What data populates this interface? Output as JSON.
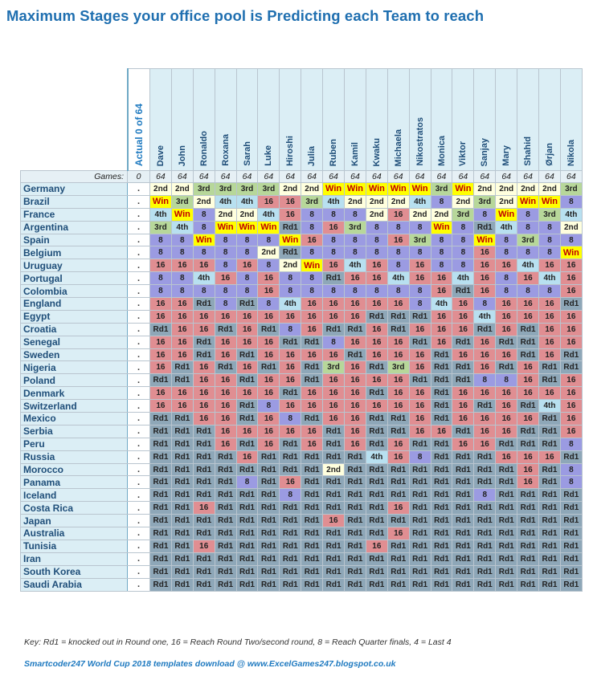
{
  "title": "Maximum Stages your office pool is Predicting each Team to reach",
  "actual_header": "Actual 0 of 64",
  "games_label": "Games:",
  "games_actual": "0",
  "players": [
    "Dave",
    "John",
    "Ronaldo",
    "Roxana",
    "Sarah",
    "Luke",
    "Hiroshi",
    "Julia",
    "Ruben",
    "Kamil",
    "Kwaku",
    "Michaela",
    "Nikostratos",
    "Monica",
    "Viktor",
    "Sanjay",
    "Mary",
    "Shahid",
    "Ørjan",
    "Nikola"
  ],
  "games_per_player": [
    "64",
    "64",
    "64",
    "64",
    "64",
    "64",
    "64",
    "64",
    "64",
    "64",
    "64",
    "64",
    "64",
    "64",
    "64",
    "64",
    "64",
    "64",
    "64",
    "64"
  ],
  "rows": [
    {
      "team": "Germany",
      "actual": ".",
      "picks": [
        "2nd",
        "2nd",
        "3rd",
        "3rd",
        "3rd",
        "3rd",
        "2nd",
        "2nd",
        "Win",
        "Win",
        "Win",
        "Win",
        "Win",
        "3rd",
        "Win",
        "2nd",
        "2nd",
        "2nd",
        "2nd",
        "3rd"
      ]
    },
    {
      "team": "Brazil",
      "actual": ".",
      "picks": [
        "Win",
        "3rd",
        "2nd",
        "4th",
        "4th",
        "16",
        "16",
        "3rd",
        "4th",
        "2nd",
        "2nd",
        "2nd",
        "4th",
        "8",
        "2nd",
        "3rd",
        "2nd",
        "Win",
        "Win",
        "8"
      ]
    },
    {
      "team": "France",
      "actual": ".",
      "picks": [
        "4th",
        "Win",
        "8",
        "2nd",
        "2nd",
        "4th",
        "16",
        "8",
        "8",
        "8",
        "2nd",
        "16",
        "2nd",
        "2nd",
        "3rd",
        "8",
        "Win",
        "8",
        "3rd",
        "4th"
      ]
    },
    {
      "team": "Argentina",
      "actual": ".",
      "picks": [
        "3rd",
        "4th",
        "8",
        "Win",
        "Win",
        "Win",
        "Rd1",
        "8",
        "16",
        "3rd",
        "8",
        "8",
        "8",
        "Win",
        "8",
        "Rd1",
        "4th",
        "8",
        "8",
        "2nd"
      ]
    },
    {
      "team": "Spain",
      "actual": ".",
      "picks": [
        "8",
        "8",
        "Win",
        "8",
        "8",
        "8",
        "Win",
        "16",
        "8",
        "8",
        "8",
        "16",
        "3rd",
        "8",
        "8",
        "Win",
        "8",
        "3rd",
        "8",
        "8"
      ]
    },
    {
      "team": "Belgium",
      "actual": ".",
      "picks": [
        "8",
        "8",
        "8",
        "8",
        "8",
        "2nd",
        "Rd1",
        "8",
        "8",
        "8",
        "8",
        "8",
        "8",
        "8",
        "8",
        "16",
        "8",
        "8",
        "8",
        "Win"
      ]
    },
    {
      "team": "Uruguay",
      "actual": ".",
      "picks": [
        "16",
        "16",
        "16",
        "8",
        "16",
        "8",
        "2nd",
        "Win",
        "16",
        "4th",
        "16",
        "8",
        "16",
        "8",
        "8",
        "16",
        "16",
        "4th",
        "16",
        "16"
      ]
    },
    {
      "team": "Portugal",
      "actual": ".",
      "picks": [
        "8",
        "8",
        "4th",
        "16",
        "8",
        "16",
        "8",
        "8",
        "Rd1",
        "16",
        "16",
        "4th",
        "16",
        "16",
        "4th",
        "16",
        "8",
        "16",
        "4th",
        "16"
      ]
    },
    {
      "team": "Colombia",
      "actual": ".",
      "picks": [
        "8",
        "8",
        "8",
        "8",
        "8",
        "16",
        "8",
        "8",
        "8",
        "8",
        "8",
        "8",
        "8",
        "16",
        "Rd1",
        "16",
        "8",
        "8",
        "8",
        "16"
      ]
    },
    {
      "team": "England",
      "actual": ".",
      "picks": [
        "16",
        "16",
        "Rd1",
        "8",
        "Rd1",
        "8",
        "4th",
        "16",
        "16",
        "16",
        "16",
        "16",
        "8",
        "4th",
        "16",
        "8",
        "16",
        "16",
        "16",
        "Rd1"
      ]
    },
    {
      "team": "Egypt",
      "actual": ".",
      "picks": [
        "16",
        "16",
        "16",
        "16",
        "16",
        "16",
        "16",
        "16",
        "16",
        "16",
        "Rd1",
        "Rd1",
        "Rd1",
        "16",
        "16",
        "4th",
        "16",
        "16",
        "16",
        "16"
      ]
    },
    {
      "team": "Croatia",
      "actual": ".",
      "picks": [
        "Rd1",
        "16",
        "16",
        "Rd1",
        "16",
        "Rd1",
        "8",
        "16",
        "Rd1",
        "Rd1",
        "16",
        "Rd1",
        "16",
        "16",
        "16",
        "Rd1",
        "16",
        "Rd1",
        "16",
        "16"
      ]
    },
    {
      "team": "Senegal",
      "actual": ".",
      "picks": [
        "16",
        "16",
        "Rd1",
        "16",
        "16",
        "16",
        "Rd1",
        "Rd1",
        "8",
        "16",
        "16",
        "16",
        "Rd1",
        "16",
        "Rd1",
        "16",
        "Rd1",
        "Rd1",
        "16",
        "16"
      ]
    },
    {
      "team": "Sweden",
      "actual": ".",
      "picks": [
        "16",
        "16",
        "Rd1",
        "16",
        "Rd1",
        "16",
        "16",
        "16",
        "16",
        "Rd1",
        "16",
        "16",
        "16",
        "Rd1",
        "16",
        "16",
        "16",
        "Rd1",
        "16",
        "Rd1"
      ]
    },
    {
      "team": "Nigeria",
      "actual": ".",
      "picks": [
        "16",
        "Rd1",
        "16",
        "Rd1",
        "16",
        "Rd1",
        "16",
        "Rd1",
        "3rd",
        "16",
        "Rd1",
        "3rd",
        "16",
        "Rd1",
        "Rd1",
        "16",
        "Rd1",
        "16",
        "Rd1",
        "Rd1"
      ]
    },
    {
      "team": "Poland",
      "actual": ".",
      "picks": [
        "Rd1",
        "Rd1",
        "16",
        "16",
        "Rd1",
        "16",
        "16",
        "Rd1",
        "16",
        "16",
        "16",
        "16",
        "Rd1",
        "Rd1",
        "Rd1",
        "8",
        "8",
        "16",
        "Rd1",
        "16"
      ]
    },
    {
      "team": "Denmark",
      "actual": ".",
      "picks": [
        "16",
        "16",
        "16",
        "16",
        "16",
        "16",
        "Rd1",
        "16",
        "16",
        "16",
        "Rd1",
        "16",
        "16",
        "Rd1",
        "16",
        "16",
        "16",
        "16",
        "16",
        "16"
      ]
    },
    {
      "team": "Switzerland",
      "actual": ".",
      "picks": [
        "16",
        "16",
        "16",
        "16",
        "Rd1",
        "8",
        "16",
        "16",
        "16",
        "16",
        "16",
        "16",
        "16",
        "Rd1",
        "16",
        "Rd1",
        "16",
        "Rd1",
        "4th",
        "16"
      ]
    },
    {
      "team": "Mexico",
      "actual": ".",
      "picks": [
        "Rd1",
        "Rd1",
        "16",
        "16",
        "Rd1",
        "16",
        "8",
        "Rd1",
        "16",
        "16",
        "Rd1",
        "Rd1",
        "16",
        "Rd1",
        "16",
        "16",
        "16",
        "16",
        "Rd1",
        "16"
      ]
    },
    {
      "team": "Serbia",
      "actual": ".",
      "picks": [
        "Rd1",
        "Rd1",
        "Rd1",
        "16",
        "16",
        "16",
        "16",
        "16",
        "Rd1",
        "16",
        "Rd1",
        "Rd1",
        "16",
        "16",
        "Rd1",
        "16",
        "16",
        "Rd1",
        "Rd1",
        "16"
      ]
    },
    {
      "team": "Peru",
      "actual": ".",
      "picks": [
        "Rd1",
        "Rd1",
        "Rd1",
        "16",
        "Rd1",
        "16",
        "Rd1",
        "16",
        "Rd1",
        "16",
        "Rd1",
        "16",
        "Rd1",
        "Rd1",
        "16",
        "16",
        "Rd1",
        "Rd1",
        "Rd1",
        "8"
      ]
    },
    {
      "team": "Russia",
      "actual": ".",
      "picks": [
        "Rd1",
        "Rd1",
        "Rd1",
        "Rd1",
        "16",
        "Rd1",
        "Rd1",
        "Rd1",
        "Rd1",
        "Rd1",
        "4th",
        "16",
        "8",
        "Rd1",
        "Rd1",
        "Rd1",
        "16",
        "16",
        "16",
        "Rd1"
      ]
    },
    {
      "team": "Morocco",
      "actual": ".",
      "picks": [
        "Rd1",
        "Rd1",
        "Rd1",
        "Rd1",
        "Rd1",
        "Rd1",
        "Rd1",
        "Rd1",
        "2nd",
        "Rd1",
        "Rd1",
        "Rd1",
        "Rd1",
        "Rd1",
        "Rd1",
        "Rd1",
        "Rd1",
        "16",
        "Rd1",
        "8"
      ]
    },
    {
      "team": "Panama",
      "actual": ".",
      "picks": [
        "Rd1",
        "Rd1",
        "Rd1",
        "Rd1",
        "8",
        "Rd1",
        "16",
        "Rd1",
        "Rd1",
        "Rd1",
        "Rd1",
        "Rd1",
        "Rd1",
        "Rd1",
        "Rd1",
        "Rd1",
        "Rd1",
        "16",
        "Rd1",
        "8"
      ]
    },
    {
      "team": "Iceland",
      "actual": ".",
      "picks": [
        "Rd1",
        "Rd1",
        "Rd1",
        "Rd1",
        "Rd1",
        "Rd1",
        "8",
        "Rd1",
        "Rd1",
        "Rd1",
        "Rd1",
        "Rd1",
        "Rd1",
        "Rd1",
        "Rd1",
        "8",
        "Rd1",
        "Rd1",
        "Rd1",
        "Rd1"
      ]
    },
    {
      "team": "Costa Rica",
      "actual": ".",
      "picks": [
        "Rd1",
        "Rd1",
        "16",
        "Rd1",
        "Rd1",
        "Rd1",
        "Rd1",
        "Rd1",
        "Rd1",
        "Rd1",
        "Rd1",
        "16",
        "Rd1",
        "Rd1",
        "Rd1",
        "Rd1",
        "Rd1",
        "Rd1",
        "Rd1",
        "Rd1"
      ]
    },
    {
      "team": "Japan",
      "actual": ".",
      "picks": [
        "Rd1",
        "Rd1",
        "Rd1",
        "Rd1",
        "Rd1",
        "Rd1",
        "Rd1",
        "Rd1",
        "16",
        "Rd1",
        "Rd1",
        "Rd1",
        "Rd1",
        "Rd1",
        "Rd1",
        "Rd1",
        "Rd1",
        "Rd1",
        "Rd1",
        "Rd1"
      ]
    },
    {
      "team": "Australia",
      "actual": ".",
      "picks": [
        "Rd1",
        "Rd1",
        "Rd1",
        "Rd1",
        "Rd1",
        "Rd1",
        "Rd1",
        "Rd1",
        "Rd1",
        "Rd1",
        "Rd1",
        "16",
        "Rd1",
        "Rd1",
        "Rd1",
        "Rd1",
        "Rd1",
        "Rd1",
        "Rd1",
        "Rd1"
      ]
    },
    {
      "team": "Tunisia",
      "actual": ".",
      "picks": [
        "Rd1",
        "Rd1",
        "16",
        "Rd1",
        "Rd1",
        "Rd1",
        "Rd1",
        "Rd1",
        "Rd1",
        "Rd1",
        "16",
        "Rd1",
        "Rd1",
        "Rd1",
        "Rd1",
        "Rd1",
        "Rd1",
        "Rd1",
        "Rd1",
        "Rd1"
      ]
    },
    {
      "team": "Iran",
      "actual": ".",
      "picks": [
        "Rd1",
        "Rd1",
        "Rd1",
        "Rd1",
        "Rd1",
        "Rd1",
        "Rd1",
        "Rd1",
        "Rd1",
        "Rd1",
        "Rd1",
        "Rd1",
        "Rd1",
        "Rd1",
        "Rd1",
        "Rd1",
        "Rd1",
        "Rd1",
        "Rd1",
        "Rd1"
      ]
    },
    {
      "team": "South Korea",
      "actual": ".",
      "picks": [
        "Rd1",
        "Rd1",
        "Rd1",
        "Rd1",
        "Rd1",
        "Rd1",
        "Rd1",
        "Rd1",
        "Rd1",
        "Rd1",
        "Rd1",
        "Rd1",
        "Rd1",
        "Rd1",
        "Rd1",
        "Rd1",
        "Rd1",
        "Rd1",
        "Rd1",
        "Rd1"
      ]
    },
    {
      "team": "Saudi Arabia",
      "actual": ".",
      "picks": [
        "Rd1",
        "Rd1",
        "Rd1",
        "Rd1",
        "Rd1",
        "Rd1",
        "Rd1",
        "Rd1",
        "Rd1",
        "Rd1",
        "Rd1",
        "Rd1",
        "Rd1",
        "Rd1",
        "Rd1",
        "Rd1",
        "Rd1",
        "Rd1",
        "Rd1",
        "Rd1"
      ]
    }
  ],
  "key_text": "Key: Rd1 = knocked out in Round one,  16 =  Reach Round Two/second round,  8 = Reach Quarter finals,  4 = Last 4",
  "credit_text": "Smartcoder247 World Cup 2018 templates download @ www.ExcelGames247.blogspot.co.uk",
  "stage_colors": {
    "Win": "#ffff00",
    "2nd": "#ffffde",
    "3rd": "#b7d79a",
    "4th": "#b8e0f0",
    "8": "#9b9be2",
    "16": "#e08e92",
    "Rd1": "#8ea7b8"
  }
}
